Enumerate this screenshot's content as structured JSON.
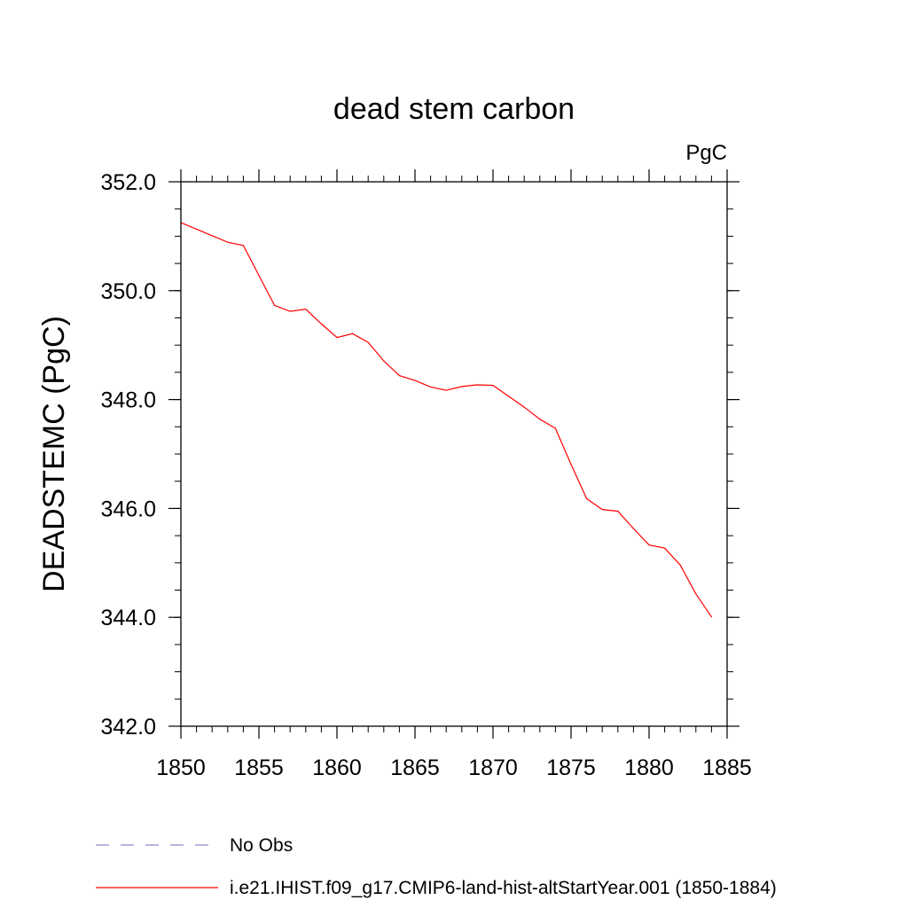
{
  "chart_data": {
    "type": "line",
    "title": "dead stem carbon",
    "units_label": "PgC",
    "xlabel": "",
    "ylabel": "DEADSTEMC  (PgC)",
    "xlim": [
      1850,
      1885
    ],
    "ylim": [
      342.0,
      352.0
    ],
    "x_ticks": [
      1850,
      1855,
      1860,
      1865,
      1870,
      1875,
      1880,
      1885
    ],
    "x_tick_labels": [
      "1850",
      "1855",
      "1860",
      "1865",
      "1870",
      "1875",
      "1880",
      "1885"
    ],
    "y_ticks": [
      342.0,
      344.0,
      346.0,
      348.0,
      350.0,
      352.0
    ],
    "y_tick_labels": [
      "342.0",
      "344.0",
      "346.0",
      "348.0",
      "350.0",
      "352.0"
    ],
    "x_minor_step": 1,
    "y_minor_step": 0.5,
    "grid": false,
    "legend_position": "bottom-left, below plot",
    "legend": [
      {
        "label": "No Obs",
        "color": "#8f86c8",
        "dash": "dashed"
      },
      {
        "label": "i.e21.IHIST.f09_g17.CMIP6-land-hist-altStartYear.001 (1850-1884)",
        "color": "#ff0000",
        "dash": "solid"
      }
    ],
    "series": [
      {
        "name": "i.e21.IHIST.f09_g17.CMIP6-land-hist-altStartYear.001 (1850-1884)",
        "color": "#ff0000",
        "x": [
          1850,
          1851,
          1852,
          1853,
          1854,
          1855,
          1856,
          1857,
          1858,
          1859,
          1860,
          1861,
          1862,
          1863,
          1864,
          1865,
          1866,
          1867,
          1868,
          1869,
          1870,
          1871,
          1872,
          1873,
          1874,
          1875,
          1876,
          1877,
          1878,
          1879,
          1880,
          1881,
          1882,
          1883,
          1884
        ],
        "y": [
          351.25,
          351.13,
          351.01,
          350.89,
          350.83,
          350.28,
          349.73,
          349.62,
          349.66,
          349.39,
          349.14,
          349.21,
          349.05,
          348.71,
          348.44,
          348.35,
          348.23,
          348.17,
          348.24,
          348.27,
          348.26,
          348.06,
          347.86,
          347.64,
          347.47,
          346.81,
          346.18,
          345.98,
          345.95,
          345.63,
          345.33,
          345.27,
          344.96,
          344.43,
          344.01
        ]
      }
    ]
  }
}
